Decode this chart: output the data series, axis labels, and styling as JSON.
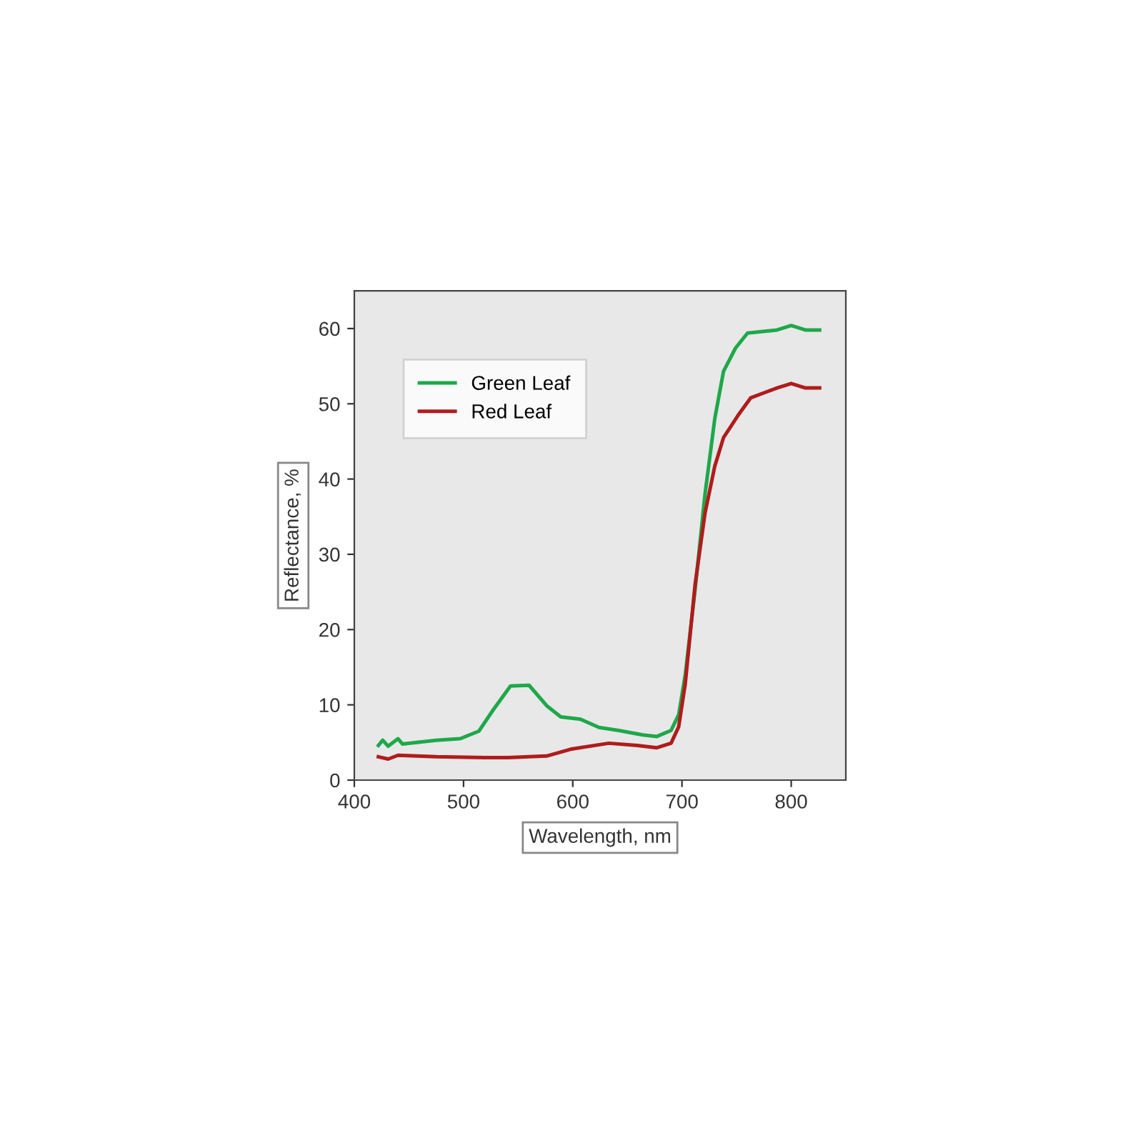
{
  "chart_data": {
    "type": "line",
    "xlabel": "Wavelength, nm",
    "ylabel": "Reflectance, %",
    "xlim": [
      400,
      850
    ],
    "ylim": [
      0,
      65
    ],
    "xticks": [
      400,
      500,
      600,
      700,
      800
    ],
    "yticks": [
      0,
      10,
      20,
      30,
      40,
      50,
      60
    ],
    "grid": false,
    "legend": "top left",
    "marker": "none",
    "line_style": "solid",
    "series": [
      {
        "name": "Green Leaf",
        "color": "#1ea84a",
        "x": [
          422,
          426,
          431,
          440,
          444,
          475,
          497,
          514,
          527,
          543,
          560,
          576,
          589,
          607,
          624,
          642,
          664,
          677,
          690,
          697,
          703,
          712,
          721,
          730,
          738,
          749,
          760,
          774,
          787,
          800,
          813,
          826
        ],
        "values": [
          4.6,
          5.3,
          4.5,
          5.5,
          4.8,
          5.3,
          5.5,
          6.5,
          9.3,
          12.5,
          12.6,
          9.9,
          8.4,
          8.1,
          7.0,
          6.6,
          6.0,
          5.8,
          6.6,
          8.7,
          14.0,
          25.3,
          37.9,
          48.0,
          54.3,
          57.4,
          59.4,
          59.6,
          59.8,
          60.4,
          59.8,
          59.8
        ]
      },
      {
        "name": "Red Leaf",
        "color": "#b01c1c",
        "x": [
          422,
          431,
          440,
          475,
          519,
          541,
          576,
          598,
          633,
          659,
          677,
          690,
          697,
          703,
          712,
          721,
          730,
          738,
          752,
          763,
          774,
          787,
          800,
          813,
          826
        ],
        "values": [
          3.1,
          2.8,
          3.3,
          3.1,
          3.0,
          3.0,
          3.2,
          4.1,
          4.9,
          4.6,
          4.3,
          4.9,
          7.1,
          12.8,
          26.0,
          35.4,
          41.7,
          45.5,
          48.6,
          50.8,
          51.4,
          52.1,
          52.7,
          52.1,
          52.1
        ]
      }
    ]
  }
}
